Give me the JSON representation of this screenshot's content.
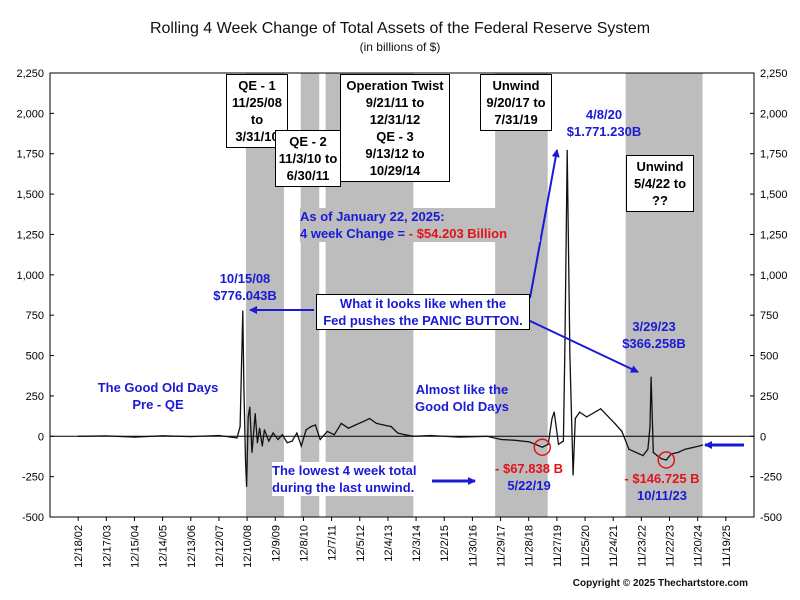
{
  "chart_data": {
    "type": "line",
    "title": "Rolling 4 Week Change of Total Assets of the Federal Reserve System",
    "subtitle": "(in billions of $)",
    "ylim": [
      -500,
      2250
    ],
    "y_ticks": [
      -500,
      -250,
      0,
      250,
      500,
      750,
      1000,
      1250,
      1500,
      1750,
      2000,
      2250
    ],
    "y_tick_labels": [
      "-500",
      "-250",
      "0",
      "250",
      "500",
      "750",
      "1,000",
      "1,250",
      "1,500",
      "1,750",
      "2,000",
      "2,250"
    ],
    "x_tick_labels": [
      "12/18/02",
      "12/17/03",
      "12/15/04",
      "12/14/05",
      "12/13/06",
      "12/12/07",
      "12/10/08",
      "12/9/09",
      "12/8/10",
      "12/7/11",
      "12/5/12",
      "12/4/13",
      "12/3/14",
      "12/2/15",
      "11/30/16",
      "11/29/17",
      "11/28/18",
      "11/27/19",
      "11/25/20",
      "11/24/21",
      "11/23/22",
      "11/22/23",
      "11/20/24",
      "11/19/25"
    ],
    "grid": false,
    "shaded_periods": [
      {
        "start": "2008-11-25",
        "end": "2010-03-31"
      },
      {
        "start": "2010-11-03",
        "end": "2011-06-30"
      },
      {
        "start": "2011-09-21",
        "end": "2014-10-29"
      },
      {
        "start": "2017-09-20",
        "end": "2019-07-31"
      },
      {
        "start": "2022-05-04",
        "end": "2025-01-22"
      }
    ],
    "series": [
      {
        "x": [
          "2002-12-18",
          "2003-12-17",
          "2004-12-15",
          "2005-12-14",
          "2006-12-13",
          "2007-12-12",
          "2008-08-01",
          "2008-09-10",
          "2008-10-15",
          "2008-10-29",
          "2008-11-19",
          "2008-12-03",
          "2008-12-24",
          "2009-01-14",
          "2009-02-11",
          "2009-03-25",
          "2009-04-22",
          "2009-05-20",
          "2009-06-24",
          "2009-07-22",
          "2009-09-16",
          "2009-11-11",
          "2010-01-13",
          "2010-03-10",
          "2010-05-12",
          "2010-07-14",
          "2010-09-15",
          "2010-11-10",
          "2011-01-12",
          "2011-03-16",
          "2011-05-11",
          "2011-07-13",
          "2011-10-12",
          "2012-01-11",
          "2012-04-11",
          "2012-07-11",
          "2012-10-10",
          "2013-01-16",
          "2013-04-10",
          "2013-07-10",
          "2013-10-09",
          "2014-01-15",
          "2014-04-09",
          "2014-07-09",
          "2014-10-29",
          "2015-06-10",
          "2016-06-08",
          "2017-06-07",
          "2017-12-06",
          "2018-06-06",
          "2018-12-05",
          "2019-05-22",
          "2019-08-07",
          "2019-09-25",
          "2019-10-23",
          "2019-12-18",
          "2020-02-19",
          "2020-03-11",
          "2020-04-08",
          "2020-05-13",
          "2020-06-24",
          "2020-07-22",
          "2020-09-16",
          "2020-12-16",
          "2021-06-16",
          "2021-12-15",
          "2022-03-16",
          "2022-06-15",
          "2022-09-14",
          "2022-12-14",
          "2023-02-15",
          "2023-03-15",
          "2023-03-29",
          "2023-04-26",
          "2023-06-14",
          "2023-08-16",
          "2023-10-11",
          "2023-12-13",
          "2024-03-13",
          "2024-06-12",
          "2024-09-11",
          "2024-12-11",
          "2025-01-22"
        ],
        "y": [
          0,
          2,
          -5,
          3,
          -2,
          5,
          -10,
          60,
          776.043,
          300,
          -150,
          -310,
          120,
          180,
          -100,
          140,
          -40,
          50,
          -60,
          40,
          -30,
          20,
          -20,
          10,
          -40,
          -30,
          20,
          -60,
          40,
          60,
          70,
          -20,
          30,
          10,
          80,
          50,
          70,
          90,
          110,
          80,
          70,
          60,
          20,
          10,
          0,
          5,
          -5,
          0,
          -20,
          -25,
          -35,
          -67.838,
          -50,
          110,
          150,
          -50,
          -30,
          600,
          1771.23,
          500,
          -240,
          110,
          150,
          120,
          170,
          80,
          30,
          -80,
          -100,
          -120,
          -80,
          60,
          366.258,
          -100,
          -120,
          -140,
          -146.725,
          -110,
          -100,
          -80,
          -70,
          -60,
          -54.203
        ]
      }
    ],
    "colors": {
      "line": "#111111",
      "shade": "#bdbdbd",
      "annotation_blue": "#1a1ad6",
      "annotation_red": "#e0141a"
    },
    "boxes": {
      "qe1": [
        "QE - 1",
        "11/25/08 to",
        "3/31/10"
      ],
      "qe2": [
        "QE - 2",
        "11/3/10 to",
        "6/30/11"
      ],
      "twist": [
        "Operation Twist",
        "9/21/11 to",
        "12/31/12",
        "QE - 3",
        "9/13/12 to",
        "10/29/14"
      ],
      "unwind1": [
        "Unwind",
        "9/20/17 to",
        "7/31/19"
      ],
      "unwind2": [
        "Unwind",
        "5/4/22 to",
        "??"
      ]
    },
    "annotations": {
      "peak_2008_date": "10/15/08",
      "peak_2008_value": "$776.043B",
      "peak_2020_date": "4/8/20",
      "peak_2020_value": "$1.771.230B",
      "peak_2023_date": "3/29/23",
      "peak_2023_value": "$366.258B",
      "asof_line1": "As of January 22, 2025:",
      "asof_line2_prefix": "4 week Change =",
      "asof_line2_value": " - $54.203 Billion",
      "panic_line1": "What it looks like when the",
      "panic_line2": "Fed pushes the PANIC BUTTON.",
      "good_old_line1": "The Good Old Days",
      "good_old_line2": "Pre - QE",
      "almost_line1": "Almost like the",
      "almost_line2": "Good Old Days",
      "lowest_line1": "The lowest 4 week total",
      "lowest_line2": "during the last unwind.",
      "low_2019_value": "- $67.838 B",
      "low_2019_date": "5/22/19",
      "low_2023_value": "- $146.725 B",
      "low_2023_date": "10/11/23"
    },
    "copyright": "Copyright © 2025 Thechartstore.com"
  }
}
